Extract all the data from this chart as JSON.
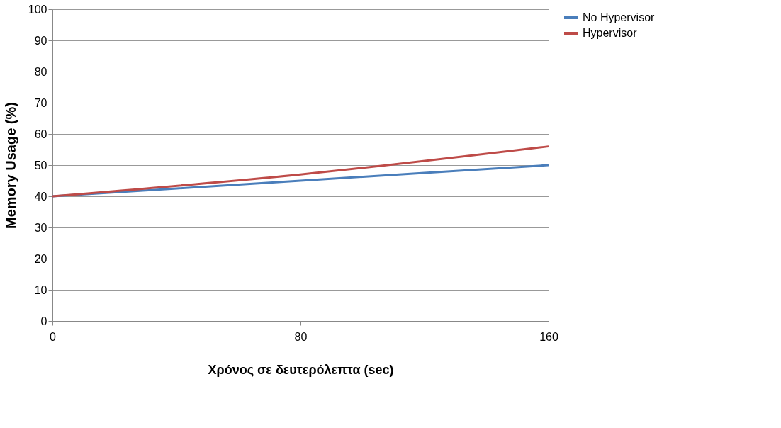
{
  "chart_data": {
    "type": "line",
    "xlabel": "Χρόνος σε δευτερόλεπτα (sec)",
    "ylabel": "Memory Usage (%)",
    "x": [
      0,
      80,
      160
    ],
    "series": [
      {
        "name": "No Hypervisor",
        "color": "#4a7ebb",
        "values": [
          40,
          45,
          50
        ]
      },
      {
        "name": "Hypervisor",
        "color": "#be4b48",
        "values": [
          40,
          47,
          56
        ]
      }
    ],
    "xlim": [
      0,
      160
    ],
    "xticks": [
      0,
      80,
      160
    ],
    "ylim": [
      0,
      100
    ],
    "yticks": [
      0,
      10,
      20,
      30,
      40,
      50,
      60,
      70,
      80,
      90,
      100
    ],
    "grid": "y",
    "legend": "right",
    "marker": "none",
    "line_style": "solid"
  }
}
